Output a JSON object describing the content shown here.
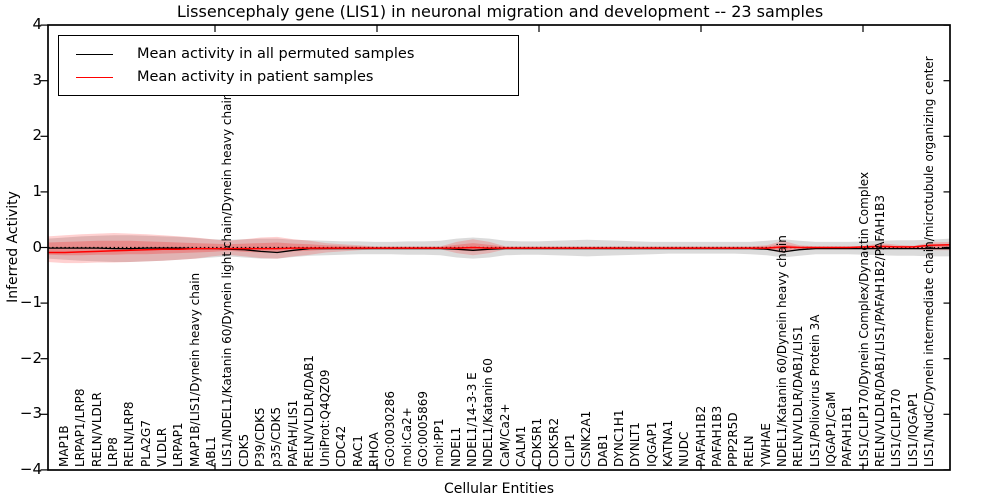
{
  "title": "Lissencephaly gene (LIS1) in neuronal migration and development -- 23 samples",
  "legend": {
    "items": [
      {
        "label": "Mean activity in all permuted samples",
        "color": "#000000"
      },
      {
        "label": "Mean activity in patient samples",
        "color": "#ff0000"
      }
    ]
  },
  "axes": {
    "ylabel": "Inferred Activity",
    "xlabel": "Cellular Entities",
    "ytick_labels": [
      "4",
      "3",
      "2",
      "1",
      "0",
      "−1",
      "−2",
      "−3",
      "−4"
    ],
    "ytick_values": [
      4,
      3,
      2,
      1,
      0,
      -1,
      -2,
      -3,
      -4
    ]
  },
  "chart_data": {
    "type": "line",
    "title": "Lissencephaly gene (LIS1) in neuronal migration and development -- 23 samples",
    "xlabel": "Cellular Entities",
    "ylabel": "Inferred Activity",
    "ylim": [
      -4,
      4
    ],
    "grid": false,
    "legend_position": "upper left",
    "zero_line": {
      "style": "dotted",
      "color": "#000000",
      "y": 0
    },
    "categories": [
      "MAP1B",
      "LRPAP1/LRP8",
      "RELN/VLDLR",
      "LRP8",
      "RELN/LRP8",
      "PLA2G7",
      "VLDLR",
      "LRPAP1",
      "MAP1B/LIS1/Dynein heavy chain",
      "ABL1",
      "LIS1/NDEL1/Katanin 60/Dynein light chain/Dynein heavy chain",
      "CDK5",
      "P39/CDK5",
      "p35/CDK5",
      "PAFAH/LIS1",
      "RELN/VLDLR/DAB1",
      "UniProt:Q4QZ09",
      "CDC42",
      "RAC1",
      "RHOA",
      "GO:0030286",
      "mol:Ca2+",
      "GO:0005869",
      "mol:PP1",
      "NDEL1",
      "NDEL1/14-3-3 E",
      "NDEL1/Katanin 60",
      "CaM/Ca2+",
      "CALM1",
      "CDK5R1",
      "CDK5R2",
      "CLIP1",
      "CSNK2A1",
      "DAB1",
      "DYNC1H1",
      "DYNLT1",
      "IQGAP1",
      "KATNA1",
      "NUDC",
      "PAFAH1B2",
      "PAFAH1B3",
      "PPP2R5D",
      "RELN",
      "YWHAE",
      "NDEL1/Katanin 60/Dynein heavy chain",
      "RELN/VLDLR/DAB1/LIS1",
      "LIS1/Poliovirus Protein 3A",
      "IQGAP1/CaM",
      "PAFAH1B1",
      "LIS1/CLIP170/Dynein Complex/Dynactin Complex",
      "RELN/VLDLR/DAB1/LIS1/PAFAH1B2/PAFAH1B3",
      "LIS1/CLIP170",
      "LIS1/IQGAP1",
      "LIS1/NudC/Dynein intermediate chain/microtubule organizing center"
    ],
    "series": [
      {
        "name": "Mean activity in all permuted samples",
        "color": "#000000",
        "values": [
          -0.01,
          -0.01,
          -0.01,
          -0.02,
          -0.02,
          -0.01,
          -0.01,
          -0.01,
          -0.02,
          -0.02,
          -0.03,
          -0.04,
          -0.07,
          -0.09,
          -0.05,
          -0.02,
          -0.02,
          -0.02,
          -0.02,
          -0.02,
          -0.02,
          -0.02,
          -0.02,
          -0.02,
          -0.03,
          -0.05,
          -0.03,
          -0.02,
          -0.02,
          -0.02,
          -0.02,
          -0.02,
          -0.02,
          -0.02,
          -0.02,
          -0.02,
          -0.02,
          -0.02,
          -0.02,
          -0.02,
          -0.02,
          -0.02,
          -0.02,
          -0.03,
          -0.08,
          -0.04,
          -0.02,
          -0.02,
          -0.02,
          -0.02,
          -0.02,
          -0.02,
          -0.02,
          -0.02
        ]
      },
      {
        "name": "Mean activity in patient samples",
        "color": "#ff0000",
        "values": [
          -0.09,
          -0.08,
          -0.07,
          -0.06,
          -0.05,
          -0.04,
          -0.03,
          -0.03,
          -0.02,
          -0.02,
          -0.02,
          -0.02,
          -0.02,
          -0.02,
          -0.01,
          -0.01,
          -0.01,
          -0.01,
          -0.01,
          -0.01,
          -0.01,
          -0.01,
          -0.01,
          -0.01,
          -0.01,
          0.0,
          -0.01,
          -0.01,
          -0.01,
          -0.01,
          -0.01,
          -0.01,
          -0.01,
          -0.01,
          -0.01,
          -0.01,
          -0.01,
          -0.01,
          -0.01,
          -0.01,
          -0.01,
          -0.01,
          -0.01,
          -0.01,
          0.01,
          0.0,
          0.0,
          0.0,
          0.0,
          0.01,
          0.02,
          0.01,
          0.01,
          0.04
        ]
      }
    ],
    "bands": [
      {
        "name": "permuted-samples-range",
        "color": "#aaaaaa",
        "opacity": 0.42,
        "upper": [
          0.18,
          0.2,
          0.21,
          0.22,
          0.22,
          0.21,
          0.2,
          0.19,
          0.17,
          0.15,
          0.14,
          0.15,
          0.16,
          0.16,
          0.14,
          0.13,
          0.12,
          0.11,
          0.11,
          0.1,
          0.1,
          0.11,
          0.11,
          0.12,
          0.16,
          0.18,
          0.16,
          0.12,
          0.11,
          0.11,
          0.12,
          0.13,
          0.14,
          0.13,
          0.12,
          0.11,
          0.1,
          0.1,
          0.1,
          0.1,
          0.1,
          0.1,
          0.1,
          0.12,
          0.15,
          0.12,
          0.1,
          0.1,
          0.1,
          0.11,
          0.12,
          0.13,
          0.13,
          0.14
        ],
        "lower": [
          -0.22,
          -0.24,
          -0.25,
          -0.26,
          -0.26,
          -0.25,
          -0.24,
          -0.22,
          -0.2,
          -0.18,
          -0.16,
          -0.18,
          -0.2,
          -0.2,
          -0.17,
          -0.15,
          -0.14,
          -0.13,
          -0.12,
          -0.12,
          -0.12,
          -0.13,
          -0.13,
          -0.14,
          -0.18,
          -0.2,
          -0.18,
          -0.14,
          -0.13,
          -0.13,
          -0.14,
          -0.15,
          -0.16,
          -0.15,
          -0.14,
          -0.13,
          -0.12,
          -0.11,
          -0.11,
          -0.11,
          -0.11,
          -0.11,
          -0.12,
          -0.14,
          -0.18,
          -0.15,
          -0.12,
          -0.12,
          -0.12,
          -0.13,
          -0.14,
          -0.15,
          -0.15,
          -0.16
        ]
      },
      {
        "name": "patient-samples-range-outer",
        "color": "#ff0000",
        "opacity": 0.18,
        "upper": [
          0.22,
          0.24,
          0.25,
          0.26,
          0.25,
          0.24,
          0.22,
          0.2,
          0.18,
          0.15,
          0.12,
          0.15,
          0.18,
          0.19,
          0.15,
          0.12,
          0.08,
          0.06,
          0.04,
          0.02,
          0.02,
          0.02,
          0.02,
          0.02,
          0.1,
          0.15,
          0.1,
          0.02,
          0.02,
          0.02,
          0.02,
          0.02,
          0.02,
          0.02,
          0.02,
          0.02,
          0.02,
          0.02,
          0.02,
          0.02,
          0.02,
          0.02,
          0.02,
          0.04,
          0.12,
          0.04,
          0.02,
          0.02,
          0.02,
          0.03,
          0.08,
          0.05,
          0.03,
          0.09
        ],
        "lower": [
          -0.28,
          -0.28,
          -0.27,
          -0.27,
          -0.26,
          -0.25,
          -0.24,
          -0.22,
          -0.2,
          -0.16,
          -0.13,
          -0.16,
          -0.19,
          -0.2,
          -0.16,
          -0.13,
          -0.09,
          -0.07,
          -0.05,
          -0.03,
          -0.03,
          -0.03,
          -0.03,
          -0.03,
          -0.1,
          -0.14,
          -0.1,
          -0.03,
          -0.03,
          -0.03,
          -0.03,
          -0.03,
          -0.03,
          -0.03,
          -0.03,
          -0.03,
          -0.03,
          -0.03,
          -0.03,
          -0.03,
          -0.03,
          -0.03,
          -0.03,
          -0.04,
          -0.1,
          -0.04,
          -0.03,
          -0.03,
          -0.03,
          -0.03,
          -0.04,
          -0.03,
          -0.03,
          -0.05
        ]
      },
      {
        "name": "patient-samples-range-inner",
        "color": "#ff0000",
        "opacity": 0.22,
        "upper": [
          0.1,
          0.11,
          0.12,
          0.12,
          0.12,
          0.11,
          0.1,
          0.09,
          0.08,
          0.07,
          0.06,
          0.07,
          0.08,
          0.09,
          0.07,
          0.06,
          0.04,
          0.03,
          0.02,
          0.01,
          0.01,
          0.01,
          0.01,
          0.01,
          0.05,
          0.08,
          0.05,
          0.01,
          0.01,
          0.01,
          0.01,
          0.01,
          0.01,
          0.01,
          0.01,
          0.01,
          0.01,
          0.01,
          0.01,
          0.01,
          0.01,
          0.01,
          0.01,
          0.02,
          0.06,
          0.02,
          0.01,
          0.01,
          0.01,
          0.015,
          0.04,
          0.025,
          0.015,
          0.05
        ],
        "lower": [
          -0.14,
          -0.14,
          -0.13,
          -0.13,
          -0.12,
          -0.12,
          -0.11,
          -0.1,
          -0.09,
          -0.08,
          -0.06,
          -0.08,
          -0.09,
          -0.09,
          -0.07,
          -0.06,
          -0.04,
          -0.03,
          -0.02,
          -0.015,
          -0.015,
          -0.015,
          -0.015,
          -0.015,
          -0.05,
          -0.07,
          -0.05,
          -0.015,
          -0.015,
          -0.015,
          -0.015,
          -0.015,
          -0.015,
          -0.015,
          -0.015,
          -0.015,
          -0.015,
          -0.015,
          -0.015,
          -0.015,
          -0.015,
          -0.015,
          -0.015,
          -0.02,
          -0.05,
          -0.02,
          -0.015,
          -0.015,
          -0.015,
          -0.015,
          -0.02,
          -0.015,
          -0.015,
          -0.02
        ]
      }
    ],
    "left_edge": {
      "permuted": -0.01,
      "patient": -0.09,
      "gray": [
        0.16,
        -0.2
      ],
      "red_outer": [
        0.2,
        -0.26
      ],
      "red_inner": [
        0.09,
        -0.13
      ]
    },
    "right_edge": {
      "permuted": -0.02,
      "patient": 0.05,
      "gray": [
        0.16,
        -0.16
      ],
      "red_outer": [
        0.1,
        -0.05
      ],
      "red_inner": [
        0.06,
        -0.02
      ]
    }
  }
}
